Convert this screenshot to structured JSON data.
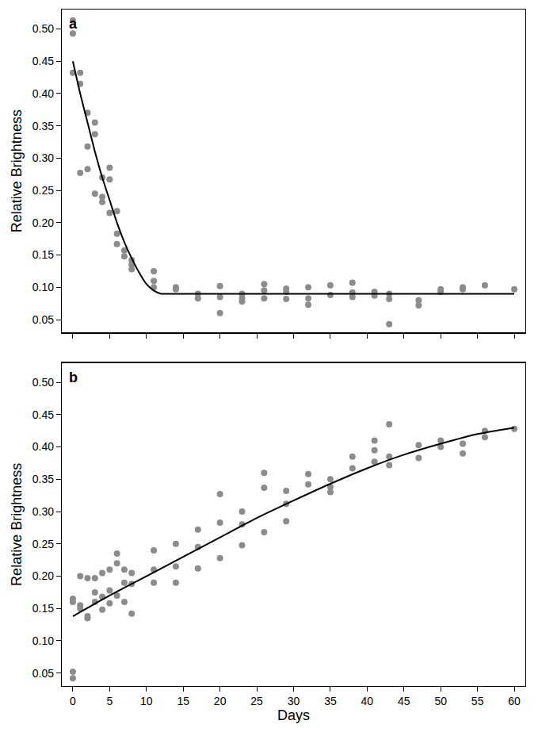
{
  "chart_data": [
    {
      "type": "scatter",
      "title": "a",
      "y_label": "Relative Brightness",
      "grid": false,
      "tick_labels": "y",
      "xlim": [
        -1.5,
        61.5
      ],
      "xticks": [
        0,
        5,
        10,
        15,
        20,
        25,
        30,
        35,
        40,
        45,
        50,
        55,
        60
      ],
      "ylim": [
        0.03,
        0.53
      ],
      "yticks": [
        0.05,
        {
          "value": 0.1,
          "label": "0.10"
        },
        0.15,
        {
          "value": 0.2,
          "label": "0.20"
        },
        0.25,
        {
          "value": 0.3,
          "label": "0.30"
        },
        0.35,
        {
          "value": 0.4,
          "label": "0.40"
        },
        0.45,
        {
          "value": 0.5,
          "label": "0.50"
        }
      ],
      "series": [
        {
          "type": "scatter",
          "marker": "circle",
          "color": "#8c8c8c",
          "x": [
            0,
            0,
            0,
            1,
            1,
            1,
            2,
            2,
            2,
            3,
            3,
            3,
            4,
            4,
            4,
            5,
            5,
            5,
            6,
            6,
            6,
            7,
            7,
            8,
            8,
            8,
            11,
            11,
            11,
            14,
            14,
            17,
            17,
            20,
            20,
            20,
            23,
            23,
            23,
            26,
            26,
            26,
            29,
            29,
            29,
            32,
            32,
            32,
            35,
            35,
            38,
            38,
            38,
            41,
            41,
            43,
            43,
            43,
            47,
            47,
            50,
            50,
            53,
            53,
            56,
            60
          ],
          "values": [
            0.513,
            0.493,
            0.432,
            0.432,
            0.415,
            0.277,
            0.37,
            0.318,
            0.283,
            0.355,
            0.337,
            0.245,
            0.27,
            0.24,
            0.232,
            0.285,
            0.267,
            0.215,
            0.218,
            0.183,
            0.167,
            0.157,
            0.148,
            0.142,
            0.135,
            0.128,
            0.125,
            0.11,
            0.1,
            0.1,
            0.097,
            0.09,
            0.083,
            0.102,
            0.085,
            0.06,
            0.09,
            0.083,
            0.078,
            0.105,
            0.095,
            0.083,
            0.098,
            0.093,
            0.082,
            0.1,
            0.083,
            0.073,
            0.103,
            0.088,
            0.107,
            0.092,
            0.085,
            0.093,
            0.087,
            0.09,
            0.082,
            0.043,
            0.08,
            0.072,
            0.097,
            0.093,
            0.1,
            0.097,
            0.103,
            0.097
          ]
        },
        {
          "type": "line",
          "line_style": "solid",
          "color": "#000000",
          "x": [
            0,
            1,
            2,
            3,
            4,
            5,
            6,
            7,
            8,
            9,
            10,
            11,
            12,
            13,
            60
          ],
          "values": [
            0.45,
            0.4,
            0.355,
            0.31,
            0.27,
            0.235,
            0.2,
            0.17,
            0.145,
            0.123,
            0.105,
            0.095,
            0.09,
            0.09,
            0.09
          ]
        }
      ]
    },
    {
      "type": "scatter",
      "title": "b",
      "x_label": "Days",
      "y_label": "Relative Brightness",
      "grid": false,
      "xlim": [
        -1.5,
        61.5
      ],
      "xticks": [
        0,
        5,
        10,
        15,
        20,
        25,
        30,
        35,
        40,
        45,
        50,
        55,
        60
      ],
      "ylim": [
        0.03,
        0.53
      ],
      "yticks": [
        0.05,
        {
          "value": 0.1,
          "label": "0.10"
        },
        0.15,
        {
          "value": 0.2,
          "label": "0.20"
        },
        0.25,
        {
          "value": 0.3,
          "label": "0.30"
        },
        0.35,
        {
          "value": 0.4,
          "label": "0.40"
        },
        0.45,
        {
          "value": 0.5,
          "label": "0.50"
        }
      ],
      "series": [
        {
          "type": "scatter",
          "marker": "circle",
          "color": "#8c8c8c",
          "x": [
            0,
            0,
            0,
            0,
            1,
            1,
            1,
            2,
            2,
            2,
            3,
            3,
            3,
            4,
            4,
            4,
            5,
            5,
            5,
            6,
            6,
            6,
            7,
            7,
            7,
            8,
            8,
            8,
            11,
            11,
            11,
            14,
            14,
            14,
            17,
            17,
            17,
            20,
            20,
            20,
            23,
            23,
            23,
            26,
            26,
            26,
            29,
            29,
            29,
            32,
            32,
            35,
            35,
            35,
            38,
            38,
            41,
            41,
            41,
            43,
            43,
            43,
            47,
            47,
            50,
            50,
            53,
            53,
            56,
            56,
            60
          ],
          "values": [
            0.165,
            0.16,
            0.052,
            0.042,
            0.2,
            0.155,
            0.15,
            0.197,
            0.138,
            0.135,
            0.197,
            0.175,
            0.16,
            0.205,
            0.168,
            0.148,
            0.21,
            0.178,
            0.158,
            0.235,
            0.22,
            0.17,
            0.21,
            0.19,
            0.16,
            0.205,
            0.188,
            0.142,
            0.24,
            0.21,
            0.19,
            0.25,
            0.215,
            0.19,
            0.272,
            0.245,
            0.212,
            0.327,
            0.283,
            0.228,
            0.3,
            0.28,
            0.248,
            0.36,
            0.337,
            0.268,
            0.332,
            0.312,
            0.285,
            0.358,
            0.342,
            0.35,
            0.338,
            0.33,
            0.385,
            0.367,
            0.41,
            0.395,
            0.377,
            0.435,
            0.385,
            0.372,
            0.403,
            0.383,
            0.41,
            0.4,
            0.405,
            0.39,
            0.425,
            0.415,
            0.428
          ]
        },
        {
          "type": "line",
          "line_style": "solid",
          "color": "#000000",
          "x": [
            0,
            5,
            10,
            15,
            20,
            25,
            30,
            35,
            40,
            45,
            50,
            55,
            60
          ],
          "values": [
            0.138,
            0.17,
            0.2,
            0.23,
            0.26,
            0.29,
            0.317,
            0.343,
            0.367,
            0.388,
            0.405,
            0.42,
            0.43
          ]
        }
      ]
    }
  ]
}
